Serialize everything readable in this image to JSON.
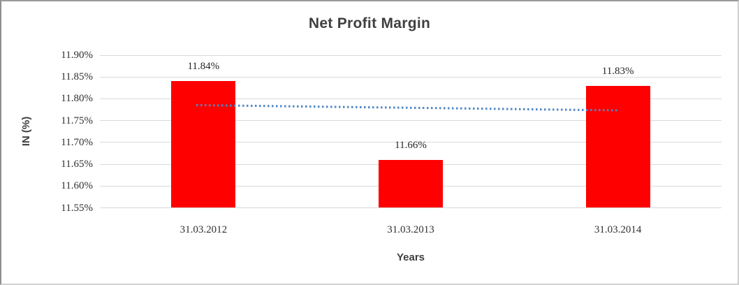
{
  "chart": {
    "title": "Net Profit Margin",
    "y_axis_title": "IN (%)",
    "x_axis_title": "Years"
  },
  "chart_data": {
    "type": "bar",
    "title": "Net Profit Margin",
    "xlabel": "Years",
    "ylabel": "IN (%)",
    "categories": [
      "31.03.2012",
      "31.03.2013",
      "31.03.2014"
    ],
    "values": [
      11.84,
      11.66,
      11.83
    ],
    "data_labels": [
      "11.84%",
      "11.66%",
      "11.83%"
    ],
    "ylim": [
      11.55,
      11.9
    ],
    "ytick_values": [
      11.55,
      11.6,
      11.65,
      11.7,
      11.75,
      11.8,
      11.85,
      11.9
    ],
    "ytick_labels": [
      "11.55%",
      "11.60%",
      "11.65%",
      "11.70%",
      "11.75%",
      "11.80%",
      "11.85%",
      "11.90%"
    ],
    "grid": true,
    "legend": false,
    "bar_color": "#FF0000",
    "gridline_color": "#D9D9D9",
    "trendline": {
      "type": "linear",
      "style": "dotted",
      "color": "#4E86C5",
      "start_value": 11.786,
      "end_value": 11.774
    }
  }
}
